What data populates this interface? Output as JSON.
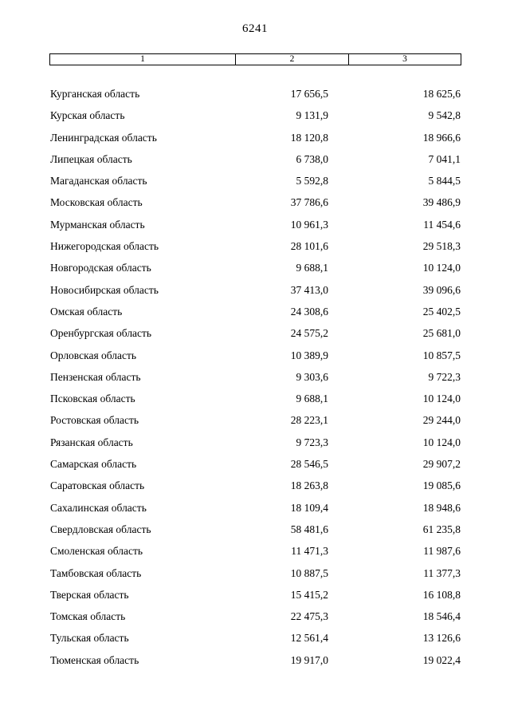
{
  "page": {
    "number": "6241"
  },
  "table": {
    "header": [
      "1",
      "2",
      "3"
    ],
    "rows": [
      {
        "name": "Курганская область",
        "col2": "17 656,5",
        "col3": "18 625,6"
      },
      {
        "name": "Курская область",
        "col2": "9 131,9",
        "col3": "9 542,8"
      },
      {
        "name": "Ленинградская область",
        "col2": "18 120,8",
        "col3": "18 966,6"
      },
      {
        "name": "Липецкая область",
        "col2": "6 738,0",
        "col3": "7 041,1"
      },
      {
        "name": "Магаданская область",
        "col2": "5 592,8",
        "col3": "5 844,5"
      },
      {
        "name": "Московская область",
        "col2": "37 786,6",
        "col3": "39 486,9"
      },
      {
        "name": "Мурманская область",
        "col2": "10 961,3",
        "col3": "11 454,6"
      },
      {
        "name": "Нижегородская область",
        "col2": "28 101,6",
        "col3": "29 518,3"
      },
      {
        "name": "Новгородская область",
        "col2": "9 688,1",
        "col3": "10 124,0"
      },
      {
        "name": "Новосибирская область",
        "col2": "37 413,0",
        "col3": "39 096,6"
      },
      {
        "name": "Омская область",
        "col2": "24 308,6",
        "col3": "25 402,5"
      },
      {
        "name": "Оренбургская область",
        "col2": "24 575,2",
        "col3": "25 681,0"
      },
      {
        "name": "Орловская область",
        "col2": "10 389,9",
        "col3": "10 857,5"
      },
      {
        "name": "Пензенская область",
        "col2": "9 303,6",
        "col3": "9 722,3"
      },
      {
        "name": "Псковская область",
        "col2": "9 688,1",
        "col3": "10 124,0"
      },
      {
        "name": "Ростовская область",
        "col2": "28 223,1",
        "col3": "29 244,0"
      },
      {
        "name": "Рязанская область",
        "col2": "9 723,3",
        "col3": "10 124,0"
      },
      {
        "name": "Самарская область",
        "col2": "28 546,5",
        "col3": "29 907,2"
      },
      {
        "name": "Саратовская область",
        "col2": "18 263,8",
        "col3": "19 085,6"
      },
      {
        "name": "Сахалинская область",
        "col2": "18 109,4",
        "col3": "18 948,6"
      },
      {
        "name": "Свердловская область",
        "col2": "58 481,6",
        "col3": "61 235,8"
      },
      {
        "name": "Смоленская область",
        "col2": "11 471,3",
        "col3": "11 987,6"
      },
      {
        "name": "Тамбовская область",
        "col2": "10 887,5",
        "col3": "11 377,3"
      },
      {
        "name": "Тверская область",
        "col2": "15 415,2",
        "col3": "16 108,8"
      },
      {
        "name": "Томская область",
        "col2": "22 475,3",
        "col3": "18 546,4"
      },
      {
        "name": "Тульская область",
        "col2": "12 561,4",
        "col3": "13 126,6"
      },
      {
        "name": "Тюменская область",
        "col2": "19 917,0",
        "col3": "19 022,4"
      }
    ]
  }
}
